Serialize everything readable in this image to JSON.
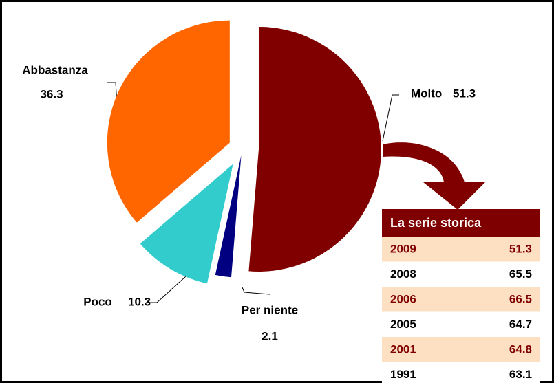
{
  "chart_data": {
    "type": "pie",
    "categories": [
      "Molto",
      "Per niente",
      "Poco",
      "Abbastanza"
    ],
    "values": [
      51.3,
      2.1,
      10.3,
      36.3
    ],
    "colors": [
      "#800000",
      "#000080",
      "#33cccc",
      "#ff6600"
    ]
  },
  "table": {
    "title": "La serie storica",
    "rows": [
      [
        "2009",
        51.3
      ],
      [
        "2008",
        65.5
      ],
      [
        "2006",
        66.5
      ],
      [
        "2005",
        64.7
      ],
      [
        "2001",
        64.8
      ],
      [
        "1991",
        63.1
      ]
    ]
  }
}
